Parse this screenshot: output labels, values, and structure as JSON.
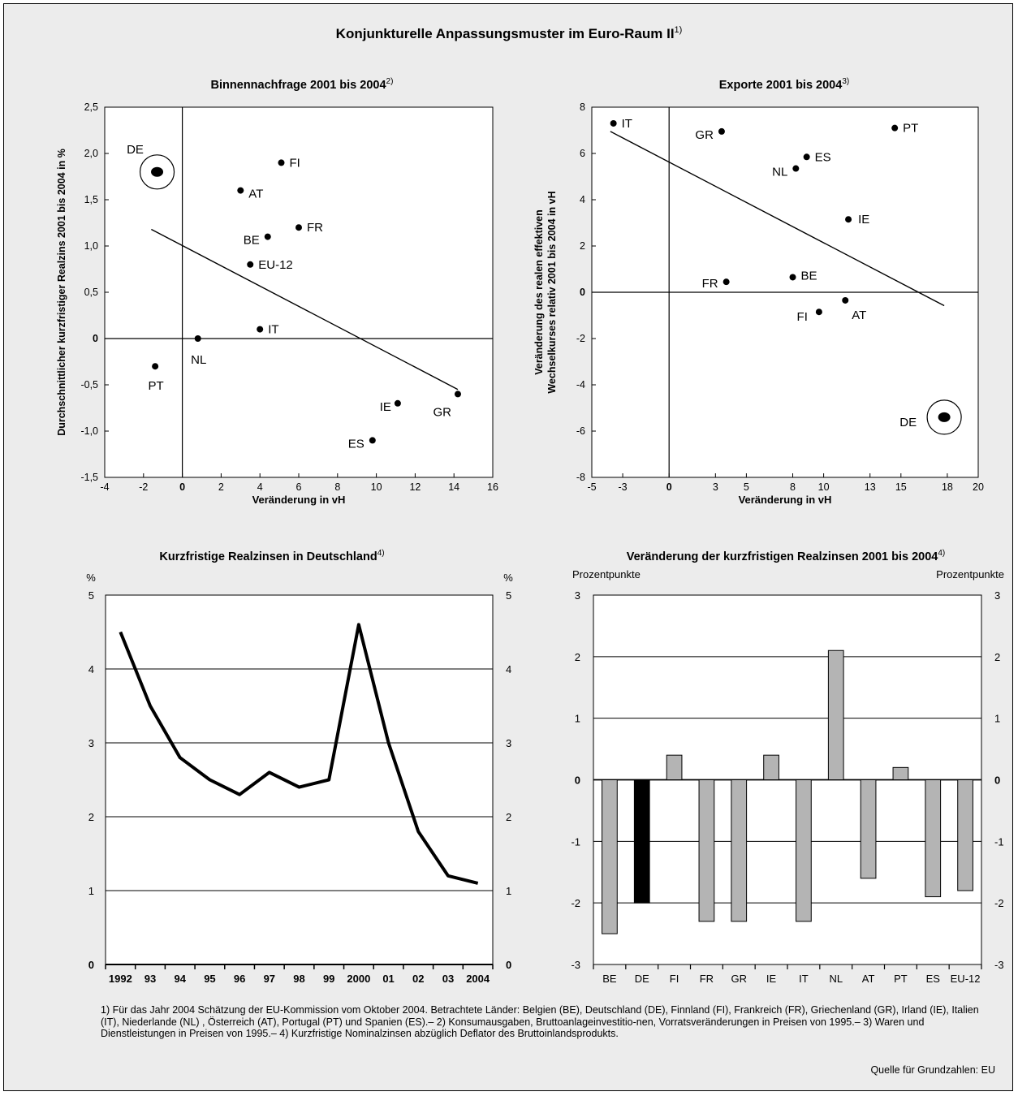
{
  "title": "Konjunkturelle Anpassungsmuster im Euro-Raum II",
  "title_note": "1)",
  "chart_data": [
    {
      "id": "binnennachfrage",
      "type": "scatter",
      "title": "Binnennachfrage 2001 bis 2004",
      "title_note": "2)",
      "xlabel": "Veränderung in vH",
      "ylabel": "Durchschnittlicher kurzfristiger Realzins 2001 bis 2004 in %",
      "xlim": [
        -4,
        16
      ],
      "ylim": [
        -1.5,
        2.5
      ],
      "xticks": [
        -4,
        -2,
        0,
        2,
        4,
        6,
        8,
        10,
        12,
        14,
        16
      ],
      "xtick_labels": [
        "-4",
        "-2",
        "0",
        "2",
        "4",
        "6",
        "8",
        "10",
        "12",
        "14",
        "16"
      ],
      "yticks": [
        -1.5,
        -1.0,
        -0.5,
        0,
        0.5,
        1.0,
        1.5,
        2.0,
        2.5
      ],
      "ytick_labels": [
        "-1,5",
        "-1,0",
        "-0,5",
        "0",
        "0,5",
        "1,0",
        "1,5",
        "2,0",
        "2,5"
      ],
      "trendline": {
        "x": [
          -1.6,
          14.2
        ],
        "y": [
          1.18,
          -0.55
        ]
      },
      "points": [
        {
          "label": "DE",
          "x": -1.3,
          "y": 1.8,
          "highlight": true
        },
        {
          "label": "FI",
          "x": 5.1,
          "y": 1.9
        },
        {
          "label": "AT",
          "x": 3.0,
          "y": 1.6
        },
        {
          "label": "FR",
          "x": 6.0,
          "y": 1.2
        },
        {
          "label": "BE",
          "x": 4.4,
          "y": 1.1
        },
        {
          "label": "EU-12",
          "x": 3.5,
          "y": 0.8
        },
        {
          "label": "IT",
          "x": 4.0,
          "y": 0.1
        },
        {
          "label": "NL",
          "x": 0.8,
          "y": 0.0
        },
        {
          "label": "PT",
          "x": -1.4,
          "y": -0.3
        },
        {
          "label": "IE",
          "x": 11.1,
          "y": -0.7
        },
        {
          "label": "GR",
          "x": 14.2,
          "y": -0.6
        },
        {
          "label": "ES",
          "x": 9.8,
          "y": -1.1
        }
      ]
    },
    {
      "id": "exporte",
      "type": "scatter",
      "title": "Exporte 2001 bis 2004",
      "title_note": "3)",
      "xlabel": "Veränderung in vH",
      "ylabel_lines": [
        "Veränderung des realen effektiven",
        "Wechselkurses relativ 2001 bis 2004 in vH"
      ],
      "xlim": [
        -5,
        20
      ],
      "ylim": [
        -8,
        8
      ],
      "xticks": [
        -5,
        -3,
        0,
        3,
        5,
        8,
        10,
        13,
        15,
        18,
        20
      ],
      "xtick_labels": [
        "-5",
        "-3",
        "0",
        "3",
        "5",
        "8",
        "10",
        "13",
        "15",
        "18",
        "20"
      ],
      "yticks": [
        -8,
        -6,
        -4,
        -2,
        0,
        2,
        4,
        6,
        8
      ],
      "ytick_labels": [
        "-8",
        "-6",
        "-4",
        "-2",
        "0",
        "2",
        "4",
        "6",
        "8"
      ],
      "trendline": {
        "x": [
          -3.8,
          17.8
        ],
        "y": [
          6.95,
          -0.58
        ]
      },
      "points": [
        {
          "label": "IT",
          "x": -3.6,
          "y": 7.3
        },
        {
          "label": "GR",
          "x": 3.4,
          "y": 6.95
        },
        {
          "label": "PT",
          "x": 14.6,
          "y": 7.1
        },
        {
          "label": "ES",
          "x": 8.9,
          "y": 5.85
        },
        {
          "label": "NL",
          "x": 8.2,
          "y": 5.35
        },
        {
          "label": "IE",
          "x": 11.6,
          "y": 3.15
        },
        {
          "label": "FR",
          "x": 3.7,
          "y": 0.45
        },
        {
          "label": "BE",
          "x": 8.0,
          "y": 0.65
        },
        {
          "label": "AT",
          "x": 11.4,
          "y": -0.35
        },
        {
          "label": "FI",
          "x": 9.7,
          "y": -0.85
        },
        {
          "label": "DE",
          "x": 17.8,
          "y": -5.4,
          "highlight": true
        }
      ]
    },
    {
      "id": "realzinsen-de",
      "type": "line",
      "title": "Kurzfristige Realzinsen in Deutschland",
      "title_note": "4)",
      "yunit_left": "%",
      "yunit_right": "%",
      "ylim": [
        0,
        5
      ],
      "yticks": [
        0,
        1,
        2,
        3,
        4,
        5
      ],
      "categories": [
        "1992",
        "93",
        "94",
        "95",
        "96",
        "97",
        "98",
        "99",
        "2000",
        "01",
        "02",
        "03",
        "2004"
      ],
      "values": [
        4.5,
        3.5,
        2.8,
        2.5,
        2.3,
        2.6,
        2.4,
        2.5,
        4.6,
        3.0,
        1.8,
        1.2,
        1.1
      ]
    },
    {
      "id": "realzinsen-veraenderung",
      "type": "bar",
      "title": "Veränderung der kurzfristigen Realzinsen 2001 bis 2004",
      "title_note": "4)",
      "yunit_left": "Prozentpunkte",
      "yunit_right": "Prozentpunkte",
      "ylim": [
        -3,
        3
      ],
      "yticks": [
        -3,
        -2,
        -1,
        0,
        1,
        2,
        3
      ],
      "categories": [
        "BE",
        "DE",
        "FI",
        "FR",
        "GR",
        "IE",
        "IT",
        "NL",
        "AT",
        "PT",
        "ES",
        "EU-12"
      ],
      "values": [
        -2.5,
        -2.0,
        0.4,
        -2.3,
        -2.3,
        0.4,
        -2.3,
        2.1,
        -1.6,
        0.2,
        -1.9,
        -1.8
      ],
      "highlight_category": "DE",
      "colors": {
        "bar": "#b4b4b4",
        "highlight": "#000000"
      }
    }
  ],
  "footnote": "1) Für das Jahr 2004 Schätzung der EU-Kommission vom Oktober 2004. Betrachtete Länder: Belgien (BE), Deutschland (DE), Finnland (FI), Frankreich (FR), Griechenland (GR), Irland (IE), Italien (IT), Niederlande (NL) , Österreich (AT), Portugal (PT) und Spanien (ES).– 2) Konsumausgaben, Bruttoanlageinvestitio-nen, Vorratsveränderungen in Preisen von 1995.– 3) Waren und Dienstleistungen in Preisen von 1995.– 4) Kurzfristige Nominalzinsen abzüglich Deflator des Bruttoinlandsprodukts.",
  "source": "Quelle für Grundzahlen: EU"
}
